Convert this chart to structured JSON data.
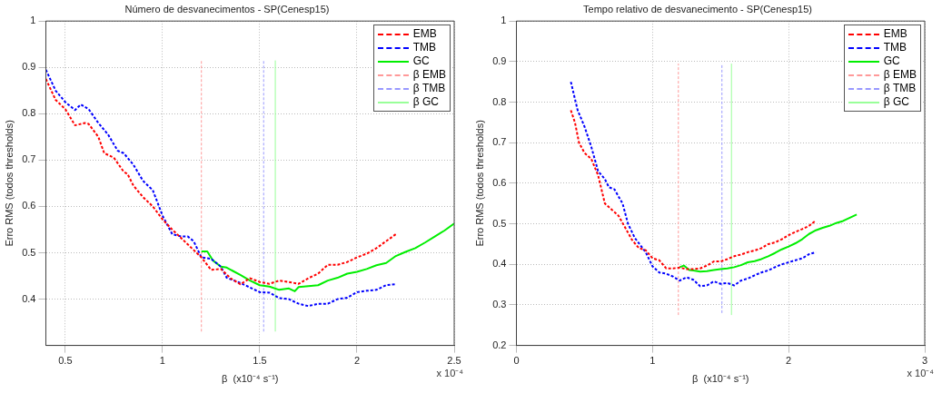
{
  "chart_data": [
    {
      "type": "line",
      "title": "Número de desvanecimentos - SP(Cenesp15)",
      "xlabel": "β  (x10⁻⁴ s⁻¹)",
      "ylabel": "Erro RMS (todos thresholds)",
      "xlim": [
        0.4,
        2.5
      ],
      "xticks": [
        0.5,
        1,
        1.5,
        2,
        2.5
      ],
      "ylim": [
        0.3,
        1
      ],
      "yticks": [
        0.4,
        0.5,
        0.6,
        0.7,
        0.8,
        0.9,
        1
      ],
      "grid": true,
      "legend": "top right",
      "marker": "none",
      "annotations": [
        "x 10⁻⁴"
      ],
      "series": [
        {
          "name": "EMB",
          "color": "#ff0000",
          "line_style": "dashed",
          "x": [
            0.4,
            0.45,
            0.5,
            0.55,
            0.6,
            0.62,
            0.67,
            0.7,
            0.75,
            0.8,
            0.82,
            0.85,
            0.9,
            0.95,
            1.0,
            1.05,
            1.1,
            1.15,
            1.2,
            1.25,
            1.3,
            1.35,
            1.4,
            1.45,
            1.5,
            1.55,
            1.6,
            1.65,
            1.7,
            1.75,
            1.8,
            1.85,
            1.9,
            1.95,
            2.0,
            2.05,
            2.1,
            2.15,
            2.2
          ],
          "values": [
            0.875,
            0.83,
            0.81,
            0.775,
            0.78,
            0.778,
            0.75,
            0.715,
            0.705,
            0.675,
            0.67,
            0.645,
            0.62,
            0.6,
            0.572,
            0.55,
            0.53,
            0.51,
            0.49,
            0.463,
            0.465,
            0.445,
            0.432,
            0.445,
            0.437,
            0.433,
            0.44,
            0.437,
            0.433,
            0.445,
            0.455,
            0.474,
            0.474,
            0.48,
            0.49,
            0.498,
            0.51,
            0.525,
            0.54
          ]
        },
        {
          "name": "TMB",
          "color": "#0000ff",
          "line_style": "dashed",
          "x": [
            0.4,
            0.45,
            0.5,
            0.55,
            0.58,
            0.62,
            0.67,
            0.72,
            0.77,
            0.8,
            0.85,
            0.9,
            0.95,
            1.0,
            1.05,
            1.1,
            1.13,
            1.16,
            1.2,
            1.25,
            1.3,
            1.33,
            1.4,
            1.45,
            1.5,
            1.55,
            1.6,
            1.65,
            1.7,
            1.75,
            1.8,
            1.85,
            1.9,
            1.95,
            2.0,
            2.05,
            2.1,
            2.15,
            2.2
          ],
          "values": [
            0.895,
            0.85,
            0.825,
            0.808,
            0.82,
            0.81,
            0.78,
            0.755,
            0.72,
            0.715,
            0.69,
            0.655,
            0.635,
            0.58,
            0.54,
            0.535,
            0.535,
            0.525,
            0.49,
            0.487,
            0.47,
            0.446,
            0.435,
            0.425,
            0.415,
            0.414,
            0.402,
            0.4,
            0.39,
            0.385,
            0.39,
            0.39,
            0.4,
            0.403,
            0.415,
            0.418,
            0.42,
            0.43,
            0.432
          ]
        },
        {
          "name": "GC",
          "color": "#00ee00",
          "line_style": "solid",
          "x": [
            1.2,
            1.23,
            1.26,
            1.3,
            1.33,
            1.4,
            1.45,
            1.5,
            1.55,
            1.6,
            1.65,
            1.68,
            1.7,
            1.75,
            1.8,
            1.85,
            1.9,
            1.95,
            2.0,
            2.05,
            2.1,
            2.15,
            2.2,
            2.25,
            2.3,
            2.35,
            2.4,
            2.45,
            2.5
          ],
          "values": [
            0.503,
            0.503,
            0.483,
            0.47,
            0.468,
            0.452,
            0.44,
            0.43,
            0.427,
            0.42,
            0.423,
            0.417,
            0.426,
            0.428,
            0.43,
            0.44,
            0.446,
            0.455,
            0.459,
            0.465,
            0.473,
            0.478,
            0.493,
            0.502,
            0.51,
            0.522,
            0.535,
            0.548,
            0.563
          ]
        },
        {
          "name": "β EMB",
          "color": "#ff9999",
          "line_style": "dashed",
          "x": [
            1.2,
            1.2
          ],
          "values": [
            0.33,
            0.915
          ]
        },
        {
          "name": "β TMB",
          "color": "#9999ff",
          "line_style": "dashed",
          "x": [
            1.52,
            1.52
          ],
          "values": [
            0.33,
            0.915
          ]
        },
        {
          "name": "β GC",
          "color": "#99ff99",
          "line_style": "solid",
          "x": [
            1.58,
            1.58
          ],
          "values": [
            0.33,
            0.915
          ]
        }
      ]
    },
    {
      "type": "line",
      "title": "Tempo relativo de desvanecimento - SP(Cenesp15)",
      "xlabel": "β  (x10⁻⁴ s⁻¹)",
      "ylabel": "Erro RMS (todos thresholds)",
      "xlim": [
        0,
        3
      ],
      "xticks": [
        0,
        1,
        2,
        3
      ],
      "ylim": [
        0.2,
        1
      ],
      "yticks": [
        0.2,
        0.3,
        0.4,
        0.5,
        0.6,
        0.7,
        0.8,
        0.9,
        1
      ],
      "grid": true,
      "legend": "top right",
      "marker": "none",
      "annotations": [
        "x 10⁻⁴"
      ],
      "series": [
        {
          "name": "EMB",
          "color": "#ff0000",
          "line_style": "dashed",
          "x": [
            0.4,
            0.43,
            0.46,
            0.5,
            0.55,
            0.6,
            0.65,
            0.7,
            0.75,
            0.8,
            0.85,
            0.9,
            0.95,
            1.0,
            1.05,
            1.1,
            1.15,
            1.2,
            1.25,
            1.3,
            1.35,
            1.4,
            1.45,
            1.5,
            1.55,
            1.6,
            1.65,
            1.7,
            1.75,
            1.8,
            1.85,
            1.9,
            1.95,
            2.0,
            2.05,
            2.1,
            2.15,
            2.2
          ],
          "values": [
            0.78,
            0.75,
            0.7,
            0.675,
            0.66,
            0.62,
            0.55,
            0.535,
            0.52,
            0.49,
            0.46,
            0.44,
            0.435,
            0.415,
            0.41,
            0.39,
            0.39,
            0.392,
            0.388,
            0.388,
            0.39,
            0.397,
            0.407,
            0.407,
            0.413,
            0.42,
            0.424,
            0.43,
            0.434,
            0.44,
            0.45,
            0.454,
            0.462,
            0.472,
            0.48,
            0.487,
            0.495,
            0.508
          ]
        },
        {
          "name": "TMB",
          "color": "#0000ff",
          "line_style": "dashed",
          "x": [
            0.4,
            0.45,
            0.5,
            0.55,
            0.6,
            0.65,
            0.68,
            0.72,
            0.78,
            0.82,
            0.87,
            0.95,
            1.0,
            1.05,
            1.1,
            1.15,
            1.2,
            1.25,
            1.3,
            1.35,
            1.4,
            1.45,
            1.5,
            1.55,
            1.6,
            1.65,
            1.7,
            1.75,
            1.8,
            1.85,
            1.9,
            1.95,
            2.0,
            2.05,
            2.1,
            2.15,
            2.2
          ],
          "values": [
            0.85,
            0.78,
            0.74,
            0.69,
            0.63,
            0.61,
            0.59,
            0.585,
            0.55,
            0.5,
            0.465,
            0.43,
            0.395,
            0.38,
            0.377,
            0.37,
            0.36,
            0.368,
            0.362,
            0.346,
            0.348,
            0.358,
            0.352,
            0.354,
            0.348,
            0.36,
            0.365,
            0.373,
            0.38,
            0.385,
            0.393,
            0.4,
            0.405,
            0.41,
            0.415,
            0.425,
            0.43
          ]
        },
        {
          "name": "GC",
          "color": "#00ee00",
          "line_style": "solid",
          "x": [
            1.2,
            1.23,
            1.27,
            1.3,
            1.35,
            1.4,
            1.45,
            1.5,
            1.55,
            1.6,
            1.65,
            1.7,
            1.75,
            1.8,
            1.85,
            1.9,
            1.95,
            2.0,
            2.05,
            2.1,
            2.15,
            2.2,
            2.25,
            2.3,
            2.35,
            2.4,
            2.45,
            2.5
          ],
          "values": [
            0.393,
            0.397,
            0.386,
            0.385,
            0.382,
            0.383,
            0.386,
            0.388,
            0.39,
            0.393,
            0.398,
            0.405,
            0.408,
            0.413,
            0.42,
            0.428,
            0.437,
            0.444,
            0.452,
            0.462,
            0.475,
            0.484,
            0.49,
            0.495,
            0.502,
            0.507,
            0.515,
            0.523
          ]
        },
        {
          "name": "β EMB",
          "color": "#ff9999",
          "line_style": "dashed",
          "x": [
            1.19,
            1.19
          ],
          "values": [
            0.275,
            0.895
          ]
        },
        {
          "name": "β TMB",
          "color": "#9999ff",
          "line_style": "dashed",
          "x": [
            1.51,
            1.51
          ],
          "values": [
            0.28,
            0.895
          ]
        },
        {
          "name": "β GC",
          "color": "#99ff99",
          "line_style": "solid",
          "x": [
            1.58,
            1.58
          ],
          "values": [
            0.275,
            0.895
          ]
        }
      ]
    }
  ]
}
